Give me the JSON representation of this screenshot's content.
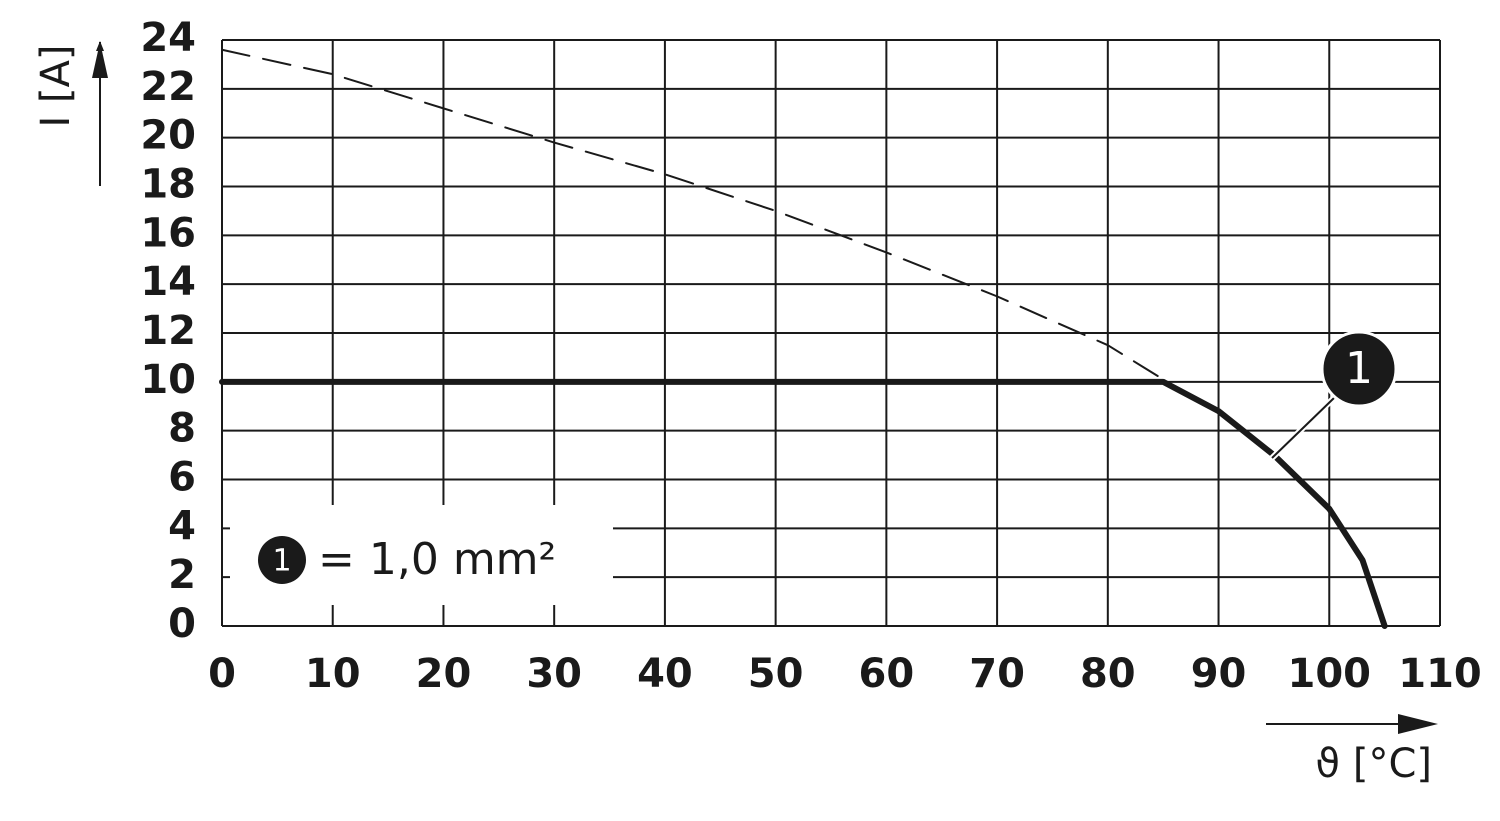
{
  "chart_data": {
    "type": "line",
    "x_label": "ϑ [°C]",
    "y_label": "I [A]",
    "xlim": [
      0,
      110
    ],
    "ylim": [
      0,
      24
    ],
    "xticks": [
      0,
      10,
      20,
      30,
      40,
      50,
      60,
      70,
      80,
      90,
      100,
      110
    ],
    "yticks": [
      0,
      2,
      4,
      6,
      8,
      10,
      12,
      14,
      16,
      18,
      20,
      22,
      24
    ],
    "grid": true,
    "legend_text": "= 1,0 mm²",
    "series": [
      {
        "name": "1",
        "color": "#1a1a1a",
        "style": "solid",
        "x": [
          0,
          85,
          90,
          95,
          100,
          103,
          105
        ],
        "values": [
          10,
          10,
          8.8,
          7.0,
          4.8,
          2.7,
          0
        ]
      },
      {
        "color": "#1a1a1a",
        "style": "dashed",
        "x": [
          0,
          10,
          20,
          30,
          40,
          50,
          60,
          70,
          80,
          85
        ],
        "values": [
          23.6,
          22.6,
          21.2,
          19.8,
          18.5,
          17.0,
          15.3,
          13.5,
          11.5,
          10.1
        ]
      }
    ]
  }
}
